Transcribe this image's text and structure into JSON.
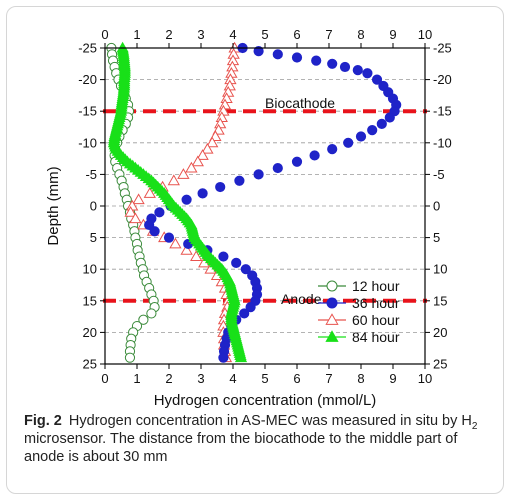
{
  "chart_data": {
    "type": "scatter",
    "xlabel": "Hydrogen concentration (mmol/L)",
    "ylabel": "Depth (mm)",
    "xlim": [
      0,
      10
    ],
    "ylim": [
      -25,
      25
    ],
    "y_inverted": true,
    "x_ticks": [
      0,
      1,
      2,
      3,
      4,
      5,
      6,
      7,
      8,
      9,
      10
    ],
    "y_ticks": [
      -25,
      -20,
      -15,
      -10,
      -5,
      0,
      5,
      10,
      15,
      20,
      25
    ],
    "grid": "horizontal dashed",
    "legend_position": "lower-right",
    "reference_lines": [
      {
        "label": "Biocathode",
        "y": -15,
        "color": "#e8131b"
      },
      {
        "label": "Anode",
        "y": 15,
        "color": "#e8131b"
      }
    ],
    "series": [
      {
        "name": "12 hour",
        "marker": "open-circle",
        "color": "#3a8a3a",
        "points": [
          [
            0.2,
            -25
          ],
          [
            0.22,
            -24
          ],
          [
            0.25,
            -23
          ],
          [
            0.3,
            -22
          ],
          [
            0.35,
            -21
          ],
          [
            0.42,
            -20
          ],
          [
            0.5,
            -19
          ],
          [
            0.58,
            -18
          ],
          [
            0.65,
            -17
          ],
          [
            0.72,
            -16
          ],
          [
            0.75,
            -15
          ],
          [
            0.72,
            -14
          ],
          [
            0.65,
            -13
          ],
          [
            0.55,
            -12
          ],
          [
            0.45,
            -11
          ],
          [
            0.38,
            -10
          ],
          [
            0.32,
            -9
          ],
          [
            0.3,
            -8
          ],
          [
            0.32,
            -7
          ],
          [
            0.38,
            -6
          ],
          [
            0.45,
            -5
          ],
          [
            0.52,
            -4
          ],
          [
            0.58,
            -3
          ],
          [
            0.62,
            -2
          ],
          [
            0.68,
            -1
          ],
          [
            0.72,
            0
          ],
          [
            0.78,
            1
          ],
          [
            0.82,
            2
          ],
          [
            0.88,
            3
          ],
          [
            0.92,
            4
          ],
          [
            0.95,
            5
          ],
          [
            1.0,
            6
          ],
          [
            1.02,
            7
          ],
          [
            1.08,
            8
          ],
          [
            1.12,
            9
          ],
          [
            1.18,
            10
          ],
          [
            1.22,
            11
          ],
          [
            1.3,
            12
          ],
          [
            1.38,
            13
          ],
          [
            1.45,
            14
          ],
          [
            1.52,
            15
          ],
          [
            1.55,
            16
          ],
          [
            1.45,
            17
          ],
          [
            1.2,
            18
          ],
          [
            1.0,
            19
          ],
          [
            0.88,
            20
          ],
          [
            0.82,
            21
          ],
          [
            0.8,
            22
          ],
          [
            0.78,
            23
          ],
          [
            0.78,
            24
          ]
        ]
      },
      {
        "name": "36 hour",
        "marker": "filled-circle",
        "color": "#1f23c8",
        "points": [
          [
            4.3,
            -25
          ],
          [
            4.8,
            -24.5
          ],
          [
            5.4,
            -24
          ],
          [
            6.0,
            -23.5
          ],
          [
            6.6,
            -23
          ],
          [
            7.1,
            -22.5
          ],
          [
            7.5,
            -22
          ],
          [
            7.9,
            -21.5
          ],
          [
            8.2,
            -21
          ],
          [
            8.5,
            -20
          ],
          [
            8.7,
            -19
          ],
          [
            8.85,
            -18
          ],
          [
            9.0,
            -17
          ],
          [
            9.1,
            -16
          ],
          [
            9.05,
            -15
          ],
          [
            8.9,
            -14
          ],
          [
            8.65,
            -13
          ],
          [
            8.35,
            -12
          ],
          [
            8.0,
            -11
          ],
          [
            7.6,
            -10
          ],
          [
            7.1,
            -9
          ],
          [
            6.55,
            -8
          ],
          [
            6.0,
            -7
          ],
          [
            5.4,
            -6
          ],
          [
            4.8,
            -5
          ],
          [
            4.2,
            -4
          ],
          [
            3.6,
            -3
          ],
          [
            3.05,
            -2
          ],
          [
            2.55,
            -1
          ],
          [
            2.05,
            0
          ],
          [
            1.7,
            1
          ],
          [
            1.45,
            2
          ],
          [
            1.38,
            3
          ],
          [
            1.55,
            4
          ],
          [
            2.0,
            5
          ],
          [
            2.6,
            6
          ],
          [
            3.2,
            7
          ],
          [
            3.7,
            8
          ],
          [
            4.1,
            9
          ],
          [
            4.4,
            10
          ],
          [
            4.6,
            11
          ],
          [
            4.7,
            12
          ],
          [
            4.75,
            13
          ],
          [
            4.75,
            14
          ],
          [
            4.7,
            15
          ],
          [
            4.55,
            16
          ],
          [
            4.35,
            17
          ],
          [
            4.1,
            18
          ],
          [
            3.95,
            19
          ],
          [
            3.85,
            20
          ],
          [
            3.8,
            21
          ],
          [
            3.75,
            22
          ],
          [
            3.72,
            23
          ],
          [
            3.7,
            24
          ]
        ]
      },
      {
        "name": "60 hour",
        "marker": "open-triangle",
        "color": "#e8534e",
        "points": [
          [
            4.05,
            -25
          ],
          [
            4.02,
            -24
          ],
          [
            4.0,
            -23
          ],
          [
            3.98,
            -22
          ],
          [
            3.95,
            -21
          ],
          [
            3.92,
            -20
          ],
          [
            3.9,
            -19
          ],
          [
            3.85,
            -18
          ],
          [
            3.8,
            -17
          ],
          [
            3.75,
            -16
          ],
          [
            3.7,
            -15
          ],
          [
            3.65,
            -14
          ],
          [
            3.6,
            -13
          ],
          [
            3.55,
            -12
          ],
          [
            3.45,
            -11
          ],
          [
            3.35,
            -10
          ],
          [
            3.2,
            -9
          ],
          [
            3.05,
            -8
          ],
          [
            2.9,
            -7
          ],
          [
            2.7,
            -6
          ],
          [
            2.45,
            -5
          ],
          [
            2.15,
            -4
          ],
          [
            1.8,
            -3
          ],
          [
            1.4,
            -2
          ],
          [
            1.05,
            -1
          ],
          [
            0.85,
            0
          ],
          [
            0.8,
            1
          ],
          [
            0.95,
            2
          ],
          [
            1.2,
            3
          ],
          [
            1.5,
            4
          ],
          [
            1.85,
            5
          ],
          [
            2.2,
            6
          ],
          [
            2.55,
            7
          ],
          [
            2.85,
            8
          ],
          [
            3.1,
            9
          ],
          [
            3.3,
            10
          ],
          [
            3.5,
            11
          ],
          [
            3.65,
            12
          ],
          [
            3.75,
            13
          ],
          [
            3.8,
            14
          ],
          [
            3.85,
            15
          ],
          [
            3.82,
            16
          ],
          [
            3.75,
            17
          ],
          [
            3.72,
            18
          ],
          [
            3.7,
            19
          ],
          [
            3.7,
            20
          ],
          [
            3.72,
            21
          ],
          [
            3.72,
            22
          ],
          [
            3.75,
            23
          ],
          [
            3.78,
            24
          ]
        ]
      },
      {
        "name": "84 hour",
        "marker": "filled-triangle",
        "color": "#19e019",
        "points": [
          [
            0.55,
            -25
          ],
          [
            0.58,
            -24
          ],
          [
            0.6,
            -23
          ],
          [
            0.62,
            -22
          ],
          [
            0.62,
            -21
          ],
          [
            0.6,
            -20
          ],
          [
            0.6,
            -19
          ],
          [
            0.58,
            -18
          ],
          [
            0.55,
            -17
          ],
          [
            0.52,
            -16
          ],
          [
            0.5,
            -15
          ],
          [
            0.45,
            -14
          ],
          [
            0.4,
            -13
          ],
          [
            0.35,
            -12
          ],
          [
            0.3,
            -11
          ],
          [
            0.28,
            -10
          ],
          [
            0.35,
            -9
          ],
          [
            0.5,
            -8
          ],
          [
            0.7,
            -7
          ],
          [
            0.95,
            -6
          ],
          [
            1.2,
            -5
          ],
          [
            1.45,
            -4
          ],
          [
            1.65,
            -3
          ],
          [
            1.85,
            -2
          ],
          [
            2.0,
            -1
          ],
          [
            2.15,
            0
          ],
          [
            2.35,
            1
          ],
          [
            2.55,
            2
          ],
          [
            2.7,
            3
          ],
          [
            2.75,
            4
          ],
          [
            2.8,
            5
          ],
          [
            2.95,
            6
          ],
          [
            3.1,
            7
          ],
          [
            3.25,
            8
          ],
          [
            3.45,
            9
          ],
          [
            3.65,
            10
          ],
          [
            3.8,
            11
          ],
          [
            3.9,
            12
          ],
          [
            3.95,
            13
          ],
          [
            4.0,
            14
          ],
          [
            4.05,
            15
          ],
          [
            4.0,
            16
          ],
          [
            3.95,
            17
          ],
          [
            3.95,
            18
          ],
          [
            4.0,
            19
          ],
          [
            4.05,
            20
          ],
          [
            4.1,
            21
          ],
          [
            4.15,
            22
          ],
          [
            4.2,
            23
          ],
          [
            4.25,
            24
          ]
        ]
      }
    ]
  },
  "caption": {
    "label": "Fig. 2",
    "text_before_sub": "Hydrogen concentration in AS-MEC was measured in situ by H",
    "subscript": "2",
    "text_after_sub": " microsensor. The distance from the biocathode to the middle part of anode is about 30 mm"
  }
}
